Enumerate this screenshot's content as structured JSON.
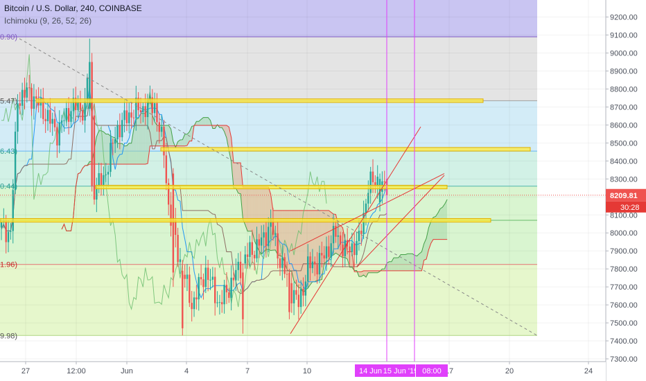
{
  "header": {
    "title": "Bitcoin / U.S. Dollar, 240, COINBASE",
    "indicator": "Ichimoku (9, 26, 52, 26)"
  },
  "chart_data": {
    "type": "candlestick",
    "symbol": "Bitcoin / U.S. Dollar",
    "interval": "240",
    "exchange": "COINBASE",
    "ylim": [
      7240,
      9330
    ],
    "price_ticks": [
      9200,
      9100,
      9000,
      8900,
      8800,
      8700,
      8600,
      8500,
      8400,
      8300,
      8200,
      8100,
      8000,
      7900,
      7800,
      7700,
      7600,
      7500,
      7400,
      7300
    ],
    "price_tick_labels": [
      "9200.00",
      "9100.00",
      "9000.00",
      "8900.00",
      "8800.00",
      "8700.00",
      "8600.00",
      "8500.00",
      "8400.00",
      "8300.00",
      "8200.00",
      "8100.00",
      "8000.00",
      "7900.00",
      "7800.00",
      "7700.00",
      "7600.00",
      "7500.00",
      "7400.00",
      "7300.00"
    ],
    "x_tick_labels": [
      "27",
      "12:00",
      "Jun",
      "4",
      "7",
      "10",
      "17",
      "20",
      "24"
    ],
    "current_price": "8209.81",
    "countdown": "30:28",
    "crosshair_dates": [
      "14 Jun",
      "15 Jun '19",
      "08:00"
    ],
    "fib_left_labels": [
      "0.90)",
      "5.47)",
      "6.43)",
      "0.44)",
      "1.96)",
      "9.98)"
    ],
    "fib_levels": [
      9090,
      8735,
      8455,
      8260,
      7825,
      7430
    ],
    "colors": {
      "up": "#26a69a",
      "down": "#ef5350",
      "cloud_bull": "#a5d6a7",
      "cloud_bear": "#e6a98f",
      "zone_highlight": "#ffeb3b",
      "crosshair": "#e040fb",
      "price_label": "#ef5350"
    }
  }
}
